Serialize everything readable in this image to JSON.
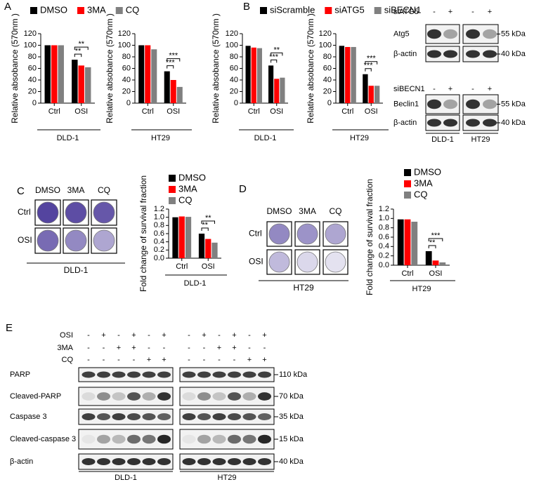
{
  "panel_labels": [
    "A",
    "B",
    "C",
    "D",
    "E"
  ],
  "chart_data": [
    {
      "type": "bar",
      "y_label": "Relative absobance (570nm )",
      "x_label": "DLD-1",
      "categories": [
        "Ctrl",
        "OSI"
      ],
      "series": [
        {
          "name": "DMSO",
          "color": "#000000",
          "values": [
            100,
            75
          ]
        },
        {
          "name": "3MA",
          "color": "#ff0000",
          "values": [
            100,
            65
          ]
        },
        {
          "name": "CQ",
          "color": "#808080",
          "values": [
            100,
            62
          ]
        }
      ],
      "ylim": [
        0,
        120
      ],
      "yticks": [
        0,
        20,
        40,
        60,
        80,
        100,
        120
      ],
      "annotations": [
        "**",
        "**"
      ],
      "legend": "top"
    },
    {
      "type": "bar",
      "y_label": "Relative absobance (570nm )",
      "x_label": "HT29",
      "categories": [
        "Ctrl",
        "OSI"
      ],
      "series": [
        {
          "color": "#000000",
          "values": [
            100,
            55
          ]
        },
        {
          "color": "#ff0000",
          "values": [
            100,
            40
          ]
        },
        {
          "color": "#808080",
          "values": [
            93,
            28
          ]
        }
      ],
      "ylim": [
        0,
        120
      ],
      "yticks": [
        0,
        20,
        40,
        60,
        80,
        100,
        120
      ],
      "annotations": [
        "***",
        "***"
      ]
    },
    {
      "type": "bar",
      "y_label": "Relative absobance (570nm )",
      "x_label": "DLD-1",
      "categories": [
        "Ctrl",
        "OSI"
      ],
      "series": [
        {
          "name": "siScramble",
          "color": "#000000",
          "values": [
            99,
            65
          ]
        },
        {
          "name": "siATG5",
          "color": "#ff0000",
          "values": [
            96,
            42
          ]
        },
        {
          "name": "siBECN1",
          "color": "#808080",
          "values": [
            95,
            44
          ]
        }
      ],
      "ylim": [
        0,
        120
      ],
      "yticks": [
        0,
        20,
        40,
        60,
        80,
        100,
        120
      ],
      "annotations": [
        "***",
        "**"
      ],
      "legend": "top"
    },
    {
      "type": "bar",
      "y_label": "Relative absobance (570nm )",
      "x_label": "HT29",
      "categories": [
        "Ctrl",
        "OSI"
      ],
      "series": [
        {
          "color": "#000000",
          "values": [
            99,
            50
          ]
        },
        {
          "color": "#ff0000",
          "values": [
            97,
            30
          ]
        },
        {
          "color": "#808080",
          "values": [
            97,
            30
          ]
        }
      ],
      "ylim": [
        0,
        120
      ],
      "yticks": [
        0,
        20,
        40,
        60,
        80,
        100,
        120
      ],
      "annotations": [
        "***",
        "***"
      ]
    },
    {
      "type": "bar",
      "y_label": "Fold change of survival fraction",
      "x_label": "DLD-1",
      "categories": [
        "Ctrl",
        "OSI"
      ],
      "series": [
        {
          "name": "DMSO",
          "color": "#000000",
          "values": [
            1.0,
            0.6
          ]
        },
        {
          "name": "3MA",
          "color": "#ff0000",
          "values": [
            1.02,
            0.47
          ]
        },
        {
          "name": "CQ",
          "color": "#808080",
          "values": [
            1.01,
            0.38
          ]
        }
      ],
      "ylim": [
        0,
        1.2
      ],
      "yticks": [
        {
          "value": 0,
          "label": "0.0"
        },
        0.2,
        0.4,
        0.6,
        0.8,
        {
          "value": 1,
          "label": "1.0"
        },
        1.2
      ],
      "annotations": [
        "**",
        "**"
      ],
      "legend": "upper right"
    },
    {
      "type": "bar",
      "y_label": "Fold change of survival fraction",
      "x_label": "HT29",
      "categories": [
        "Ctrl",
        "OSI"
      ],
      "series": [
        {
          "name": "DMSO",
          "color": "#000000",
          "values": [
            0.98,
            0.3
          ]
        },
        {
          "name": "3MA",
          "color": "#ff0000",
          "values": [
            0.98,
            0.1
          ]
        },
        {
          "name": "CQ",
          "color": "#808080",
          "values": [
            0.93,
            0.06
          ]
        }
      ],
      "ylim": [
        0,
        1.2
      ],
      "yticks": [
        {
          "value": 0,
          "label": "0.0"
        },
        0.2,
        0.4,
        0.6,
        0.8,
        {
          "value": 1,
          "label": "1.0"
        },
        1.2
      ],
      "annotations": [
        "**",
        "***"
      ],
      "legend": "upper right"
    }
  ],
  "blot_b": {
    "groups": [
      {
        "treatment": "siATG5",
        "signs": [
          "-",
          "+",
          "-",
          "+"
        ],
        "proteins": [
          "Atg5",
          "β-actin"
        ],
        "markers": [
          "55 kDa",
          "40 kDa"
        ]
      },
      {
        "treatment": "siBECN1",
        "signs": [
          "-",
          "+",
          "-",
          "+"
        ],
        "proteins": [
          "Beclin1",
          "β-actin"
        ],
        "markers": [
          "55 kDa",
          "40 kDa"
        ]
      }
    ],
    "cell_lines": [
      "DLD-1",
      "HT29"
    ]
  },
  "colonies_c": {
    "columns": [
      "DMSO",
      "3MA",
      "CQ"
    ],
    "rows": [
      "Ctrl",
      "OSI"
    ],
    "cell_line": "DLD-1"
  },
  "colonies_d": {
    "columns": [
      "DMSO",
      "3MA",
      "CQ"
    ],
    "rows": [
      "Ctrl",
      "OSI"
    ],
    "cell_line": "HT29"
  },
  "blot_e": {
    "treatments": [
      {
        "label": "OSI",
        "signs": [
          "-",
          "+",
          "-",
          "+",
          "-",
          "+",
          "-",
          "+",
          "-",
          "+",
          "-",
          "+"
        ]
      },
      {
        "label": "3MA",
        "signs": [
          "-",
          "-",
          "+",
          "+",
          "-",
          "-",
          "-",
          "-",
          "+",
          "+",
          "-",
          "-"
        ]
      },
      {
        "label": "CQ",
        "signs": [
          "-",
          "-",
          "-",
          "-",
          "+",
          "+",
          "-",
          "-",
          "-",
          "-",
          "+",
          "+"
        ]
      }
    ],
    "proteins": [
      "PARP",
      "Cleaved-PARP",
      "Caspase 3",
      "Cleaved-caspase 3",
      "β-actin"
    ],
    "markers": [
      "110 kDa",
      "70 kDa",
      "35 kDa",
      "15 kDa",
      "40 kDa"
    ],
    "cell_lines": [
      "DLD-1",
      "HT29"
    ]
  }
}
